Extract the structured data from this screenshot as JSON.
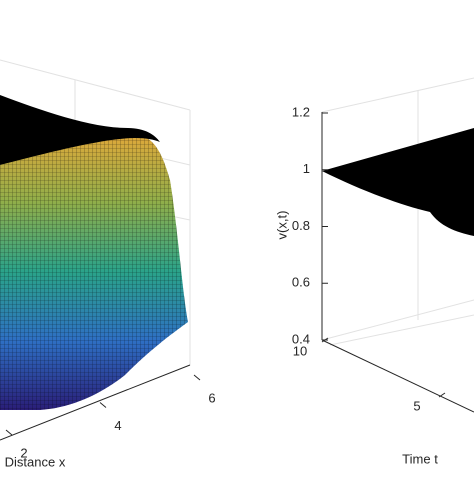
{
  "chart_data": [
    {
      "type": "surface",
      "xlabel": "Distance x",
      "xticks": [
        2,
        4,
        6
      ]
    },
    {
      "type": "surface",
      "zlabel": "v(x,t)",
      "zlim": [
        0.4,
        1.2
      ],
      "zticks": [
        0.4,
        0.6,
        0.8,
        1,
        1.2
      ],
      "ylabel": "Time t",
      "yticks": [
        5,
        10
      ]
    }
  ]
}
